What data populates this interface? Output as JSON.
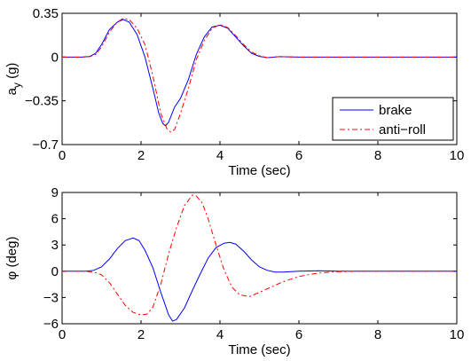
{
  "chart_data": [
    {
      "type": "line",
      "xlabel": "Time (sec)",
      "ylabel_main": "a",
      "ylabel_sub": "y",
      "ylabel_unit": "(g)",
      "xlim": [
        0,
        10
      ],
      "ylim": [
        -0.7,
        0.35
      ],
      "xticks": [
        0,
        2,
        4,
        6,
        8,
        10
      ],
      "xtick_labels": [
        "0",
        "2",
        "4",
        "6",
        "8",
        "10"
      ],
      "yticks": [
        -0.7,
        -0.35,
        0,
        0.35
      ],
      "ytick_labels": [
        "−0.7",
        "−0.35",
        "0",
        "0.35"
      ],
      "grid": false,
      "legend": "bottom-right",
      "series": [
        {
          "name": "brake",
          "color": "#0000ff",
          "dash": "solid",
          "x": [
            0,
            0.5,
            0.7,
            0.85,
            1.0,
            1.2,
            1.4,
            1.55,
            1.7,
            1.9,
            2.1,
            2.3,
            2.45,
            2.55,
            2.62,
            2.7,
            2.85,
            3.0,
            3.2,
            3.4,
            3.6,
            3.8,
            4.0,
            4.2,
            4.4,
            4.6,
            4.8,
            5.0,
            5.2,
            5.5,
            6.0,
            7.0,
            8.0,
            9.0,
            10.0
          ],
          "y": [
            0,
            0,
            0.005,
            0.03,
            0.1,
            0.22,
            0.28,
            0.3,
            0.28,
            0.18,
            0.0,
            -0.25,
            -0.45,
            -0.53,
            -0.55,
            -0.52,
            -0.4,
            -0.33,
            -0.18,
            0.02,
            0.16,
            0.24,
            0.255,
            0.23,
            0.16,
            0.09,
            0.03,
            0.005,
            -0.005,
            0.003,
            0,
            0,
            0,
            0,
            0
          ]
        },
        {
          "name": "anti−roll",
          "color": "#ff0000",
          "dash": "dashdot",
          "x": [
            0,
            0.5,
            0.7,
            0.85,
            1.0,
            1.2,
            1.4,
            1.55,
            1.7,
            1.9,
            2.1,
            2.3,
            2.5,
            2.65,
            2.75,
            2.85,
            3.0,
            3.2,
            3.4,
            3.6,
            3.8,
            4.0,
            4.2,
            4.4,
            4.6,
            4.8,
            5.0,
            5.2,
            5.5,
            6.0,
            7.0,
            8.0,
            9.0,
            10.0
          ],
          "y": [
            0,
            0,
            0.003,
            0.02,
            0.08,
            0.2,
            0.28,
            0.31,
            0.3,
            0.23,
            0.1,
            -0.15,
            -0.45,
            -0.57,
            -0.6,
            -0.58,
            -0.45,
            -0.25,
            -0.02,
            0.13,
            0.23,
            0.26,
            0.235,
            0.17,
            0.1,
            0.04,
            0.01,
            -0.005,
            0.003,
            0,
            0,
            0,
            0,
            0
          ]
        }
      ],
      "legend_entries": [
        "brake",
        "anti−roll"
      ]
    },
    {
      "type": "line",
      "xlabel": "Time (sec)",
      "ylabel_main": "φ",
      "ylabel_unit": "(deg)",
      "xlim": [
        0,
        10
      ],
      "ylim": [
        -6,
        9
      ],
      "xticks": [
        0,
        2,
        4,
        6,
        8,
        10
      ],
      "xtick_labels": [
        "0",
        "2",
        "4",
        "6",
        "8",
        "10"
      ],
      "yticks": [
        -6,
        -3,
        0,
        3,
        6,
        9
      ],
      "ytick_labels": [
        "−6",
        "−3",
        "0",
        "3",
        "6",
        "9"
      ],
      "grid": false,
      "series": [
        {
          "name": "brake",
          "color": "#0000ff",
          "dash": "solid",
          "x": [
            0,
            0.6,
            0.8,
            1.0,
            1.2,
            1.4,
            1.6,
            1.8,
            1.95,
            2.1,
            2.3,
            2.5,
            2.7,
            2.8,
            2.9,
            3.1,
            3.3,
            3.5,
            3.7,
            3.9,
            4.1,
            4.25,
            4.4,
            4.6,
            4.8,
            5.0,
            5.2,
            5.4,
            5.6,
            6.0,
            6.5,
            7.0,
            8.0,
            9.0,
            10.0
          ],
          "y": [
            0,
            0,
            0.1,
            0.5,
            1.4,
            2.6,
            3.5,
            3.8,
            3.5,
            2.4,
            0.4,
            -2.4,
            -5.0,
            -5.7,
            -5.5,
            -4.2,
            -2.2,
            -0.3,
            1.5,
            2.7,
            3.2,
            3.3,
            3.1,
            2.3,
            1.3,
            0.5,
            0.1,
            -0.1,
            -0.1,
            0,
            0.05,
            0,
            0,
            0,
            0
          ]
        },
        {
          "name": "anti−roll",
          "color": "#ff0000",
          "dash": "dashdot",
          "x": [
            0,
            0.6,
            0.8,
            1.0,
            1.2,
            1.4,
            1.6,
            1.8,
            2.0,
            2.15,
            2.3,
            2.5,
            2.7,
            2.9,
            3.1,
            3.3,
            3.4,
            3.55,
            3.7,
            3.9,
            4.1,
            4.3,
            4.5,
            4.75,
            5.0,
            5.3,
            5.6,
            6.0,
            6.5,
            7.0,
            7.5,
            8.0,
            9.0,
            10.0
          ],
          "y": [
            0,
            0,
            -0.1,
            -0.4,
            -1.3,
            -2.6,
            -3.9,
            -4.7,
            -5.0,
            -4.9,
            -4.1,
            -1.5,
            2.0,
            5.0,
            7.5,
            8.7,
            8.6,
            7.8,
            6.0,
            3.0,
            0.2,
            -1.8,
            -2.7,
            -2.9,
            -2.4,
            -1.8,
            -1.2,
            -0.6,
            -0.2,
            -0.05,
            0,
            0,
            0,
            0
          ]
        }
      ]
    }
  ]
}
